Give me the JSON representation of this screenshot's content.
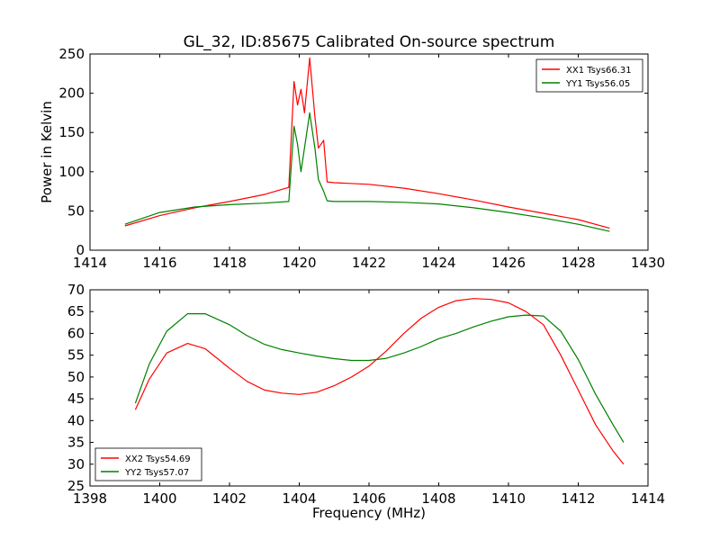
{
  "title": "GL_32, ID:85675 Calibrated On-source spectrum",
  "colors": {
    "red": "#ff0000",
    "green": "#008000"
  },
  "chart_data": [
    {
      "type": "line",
      "ylabel": "Power in Kelvin",
      "xlabel": "",
      "xlim": [
        1414,
        1430
      ],
      "ylim": [
        0,
        250
      ],
      "xticks": [
        "1414",
        "1416",
        "1418",
        "1420",
        "1422",
        "1424",
        "1426",
        "1428",
        "1430"
      ],
      "yticks": [
        "0",
        "50",
        "100",
        "150",
        "200",
        "250"
      ],
      "legend_position": "top-right",
      "series": [
        {
          "name": "XX1 Tsys66.31",
          "color": "#ff0000",
          "x": [
            1415,
            1416,
            1417,
            1418,
            1419,
            1419.7,
            1419.85,
            1419.95,
            1420.05,
            1420.15,
            1420.3,
            1420.45,
            1420.55,
            1420.7,
            1420.8,
            1421,
            1422,
            1423,
            1424,
            1425,
            1426,
            1427,
            1428,
            1428.9
          ],
          "y": [
            31,
            44,
            54,
            62,
            71,
            80,
            215,
            185,
            205,
            175,
            245,
            170,
            130,
            140,
            87,
            86,
            84,
            79,
            72,
            64,
            55,
            47,
            39,
            28
          ]
        },
        {
          "name": "YY1 Tsys56.05",
          "color": "#008000",
          "x": [
            1415,
            1416,
            1417,
            1418,
            1419,
            1419.7,
            1419.85,
            1419.95,
            1420.05,
            1420.15,
            1420.3,
            1420.45,
            1420.55,
            1420.7,
            1420.8,
            1421,
            1422,
            1423,
            1424,
            1425,
            1426,
            1427,
            1428,
            1428.9
          ],
          "y": [
            33,
            48,
            55,
            58,
            60,
            62,
            158,
            135,
            100,
            130,
            175,
            130,
            90,
            75,
            63,
            62,
            62,
            61,
            59,
            54,
            48,
            41,
            33,
            24
          ]
        }
      ]
    },
    {
      "type": "line",
      "ylabel": "",
      "xlabel": "Frequency (MHz)",
      "xlim": [
        1398,
        1414
      ],
      "ylim": [
        25,
        70
      ],
      "xticks": [
        "1398",
        "1400",
        "1402",
        "1404",
        "1406",
        "1408",
        "1410",
        "1412",
        "1414"
      ],
      "yticks": [
        "25",
        "30",
        "35",
        "40",
        "45",
        "50",
        "55",
        "60",
        "65",
        "70"
      ],
      "legend_position": "bottom-left",
      "series": [
        {
          "name": "XX2 Tsys54.69",
          "color": "#ff0000",
          "x": [
            1399.3,
            1399.7,
            1400.2,
            1400.8,
            1401.3,
            1402,
            1402.5,
            1403,
            1403.5,
            1404,
            1404.5,
            1405,
            1405.5,
            1406,
            1406.5,
            1407,
            1407.5,
            1408,
            1408.5,
            1409,
            1409.5,
            1410,
            1410.5,
            1411,
            1411.5,
            1412,
            1412.5,
            1413,
            1413.3
          ],
          "y": [
            42.5,
            49.5,
            55.5,
            57.7,
            56.5,
            52,
            49,
            47,
            46.3,
            46,
            46.5,
            48,
            50,
            52.5,
            56,
            60,
            63.5,
            66,
            67.5,
            68,
            67.8,
            67,
            65,
            62,
            55,
            47,
            39,
            33,
            30
          ]
        },
        {
          "name": "YY2 Tsys57.07",
          "color": "#008000",
          "x": [
            1399.3,
            1399.7,
            1400.2,
            1400.8,
            1401.3,
            1402,
            1402.5,
            1403,
            1403.5,
            1404,
            1404.5,
            1405,
            1405.5,
            1406,
            1406.5,
            1407,
            1407.5,
            1408,
            1408.5,
            1409,
            1409.5,
            1410,
            1410.5,
            1411,
            1411.5,
            1412,
            1412.5,
            1413,
            1413.3
          ],
          "y": [
            44,
            53,
            60.5,
            64.5,
            64.5,
            62,
            59.5,
            57.5,
            56.3,
            55.5,
            54.8,
            54.2,
            53.8,
            53.8,
            54.3,
            55.5,
            57,
            58.8,
            60,
            61.5,
            62.8,
            63.8,
            64.2,
            64,
            60.5,
            54,
            46,
            39,
            35
          ]
        }
      ]
    }
  ]
}
